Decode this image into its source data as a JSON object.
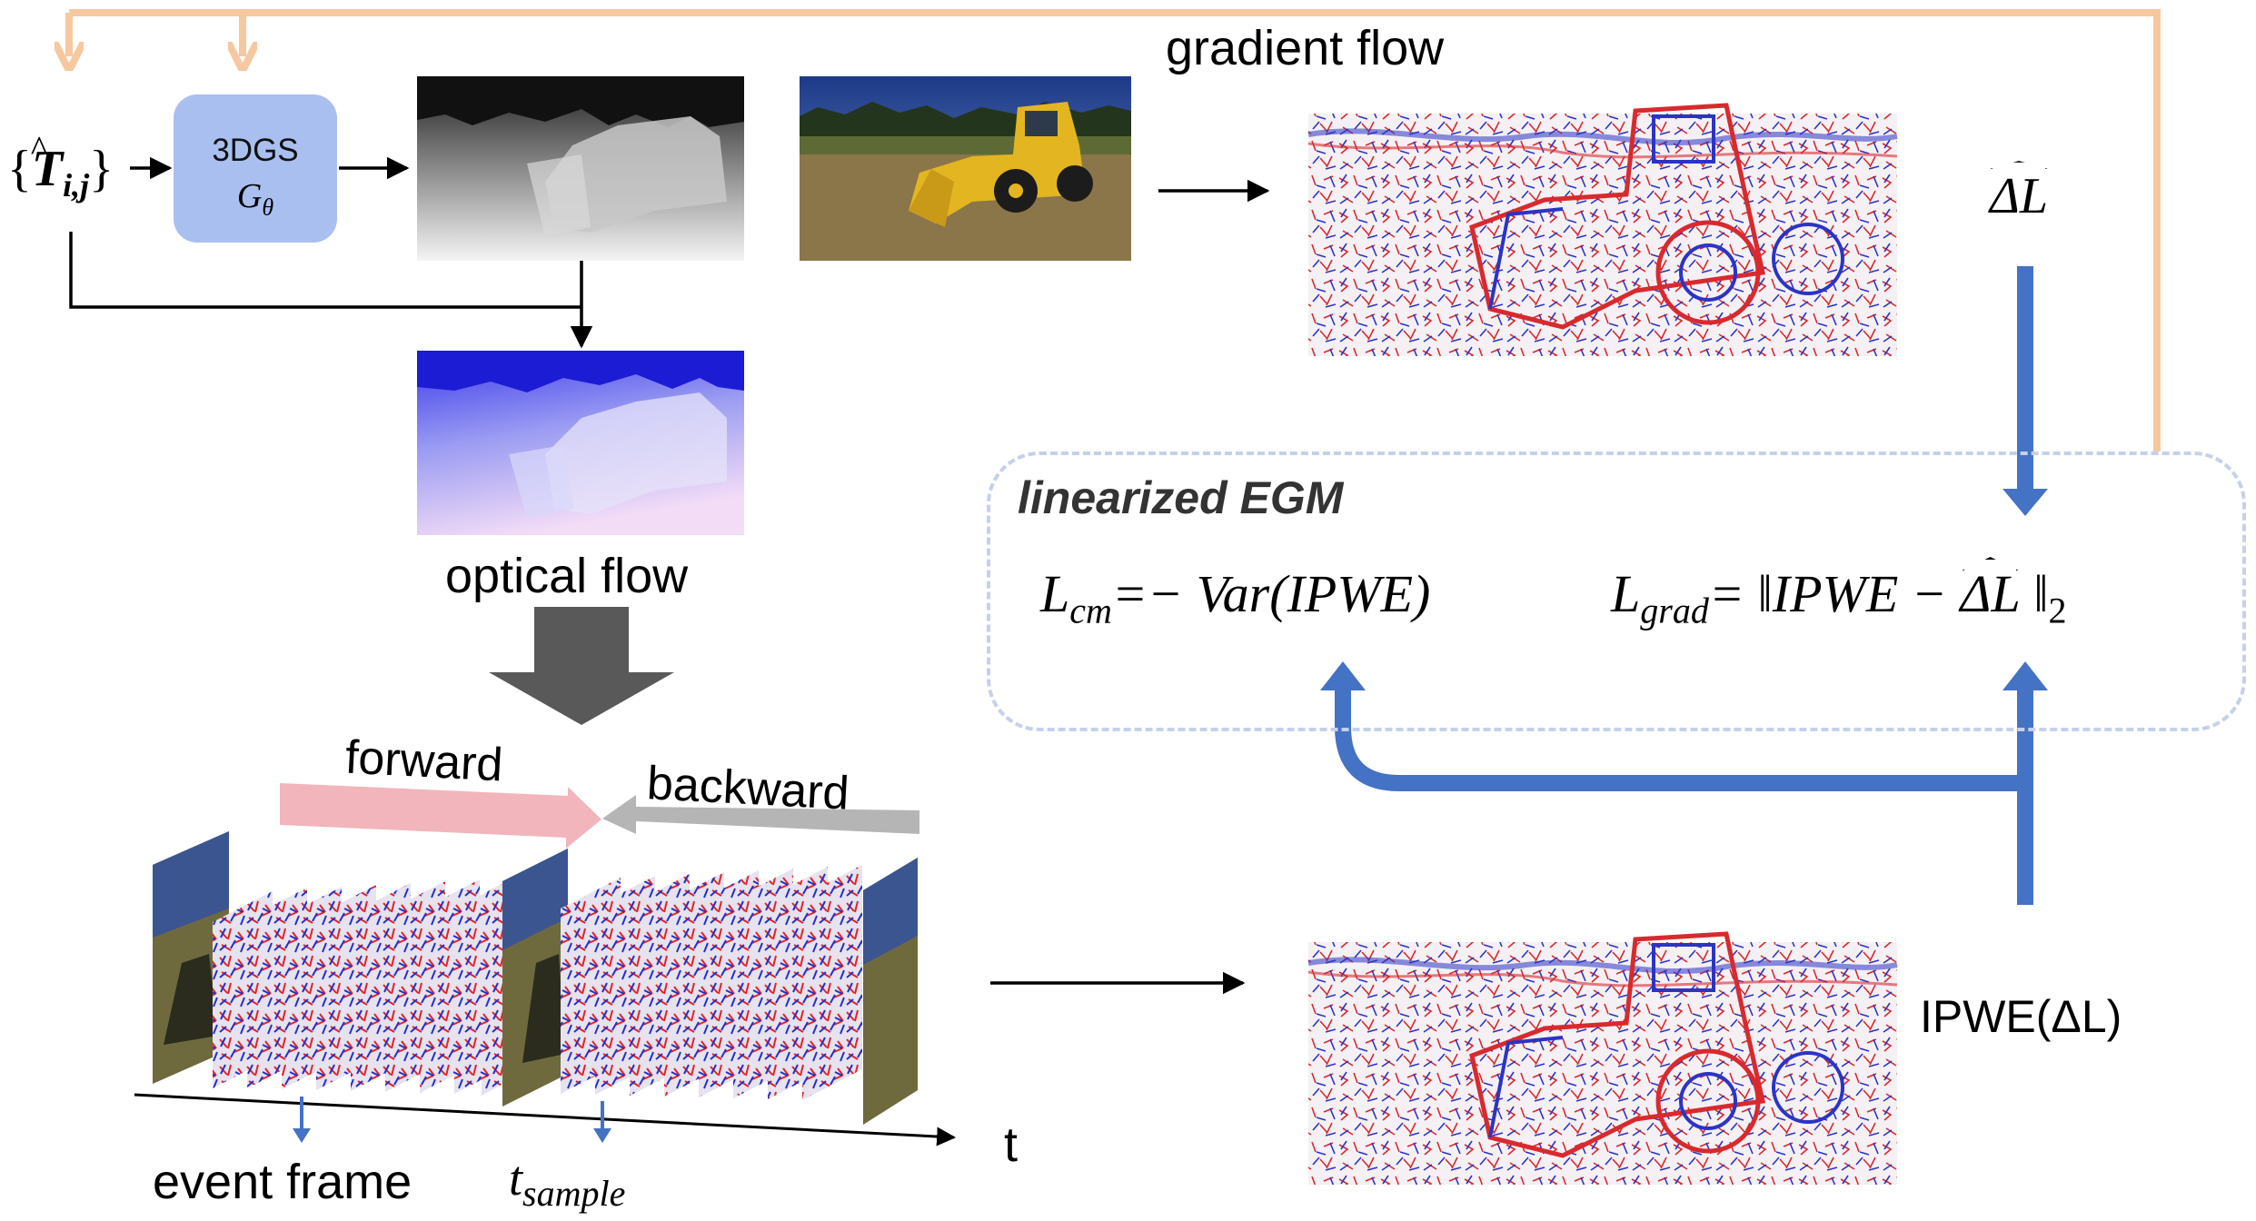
{
  "labels": {
    "gradient_flow": "gradient flow",
    "optical_flow": "optical flow",
    "forward": "forward",
    "backward": "backward",
    "event_frame": "event frame",
    "t_axis": "t",
    "t_sample_base": "t",
    "t_sample_sub": "sample",
    "linearized_egm": "linearized EGM",
    "ipwe_dl": "IPWE(ΔL)"
  },
  "node_3dgs": {
    "title": "3DGS",
    "param_base": "G",
    "param_sub": "θ"
  },
  "pose_input": {
    "open": "{",
    "symbol": "T",
    "sub": "i,j",
    "close": "}"
  },
  "delta_l_hat": "ΔL",
  "equations": {
    "cm_lhs": "L",
    "cm_sub": "cm",
    "cm_rhs": "=− Var(IPWE)",
    "grad_lhs": "L",
    "grad_sub": "grad",
    "grad_mid": "= ‖IPWE − ",
    "grad_dl": "ΔL",
    "grad_end": " ‖",
    "grad_norm": "2"
  },
  "colors": {
    "box_fill": "#a9bff0",
    "feedback_arrow": "#f6c8a0",
    "blue_arrow": "#4472c4",
    "forward_arrow": "#f2b5bc",
    "backward_arrow": "#b5b5b5",
    "dark_arrow": "#595959",
    "event_red": "#e8242a",
    "event_blue": "#2a34c8",
    "egm_border": "#c5d0ea"
  }
}
